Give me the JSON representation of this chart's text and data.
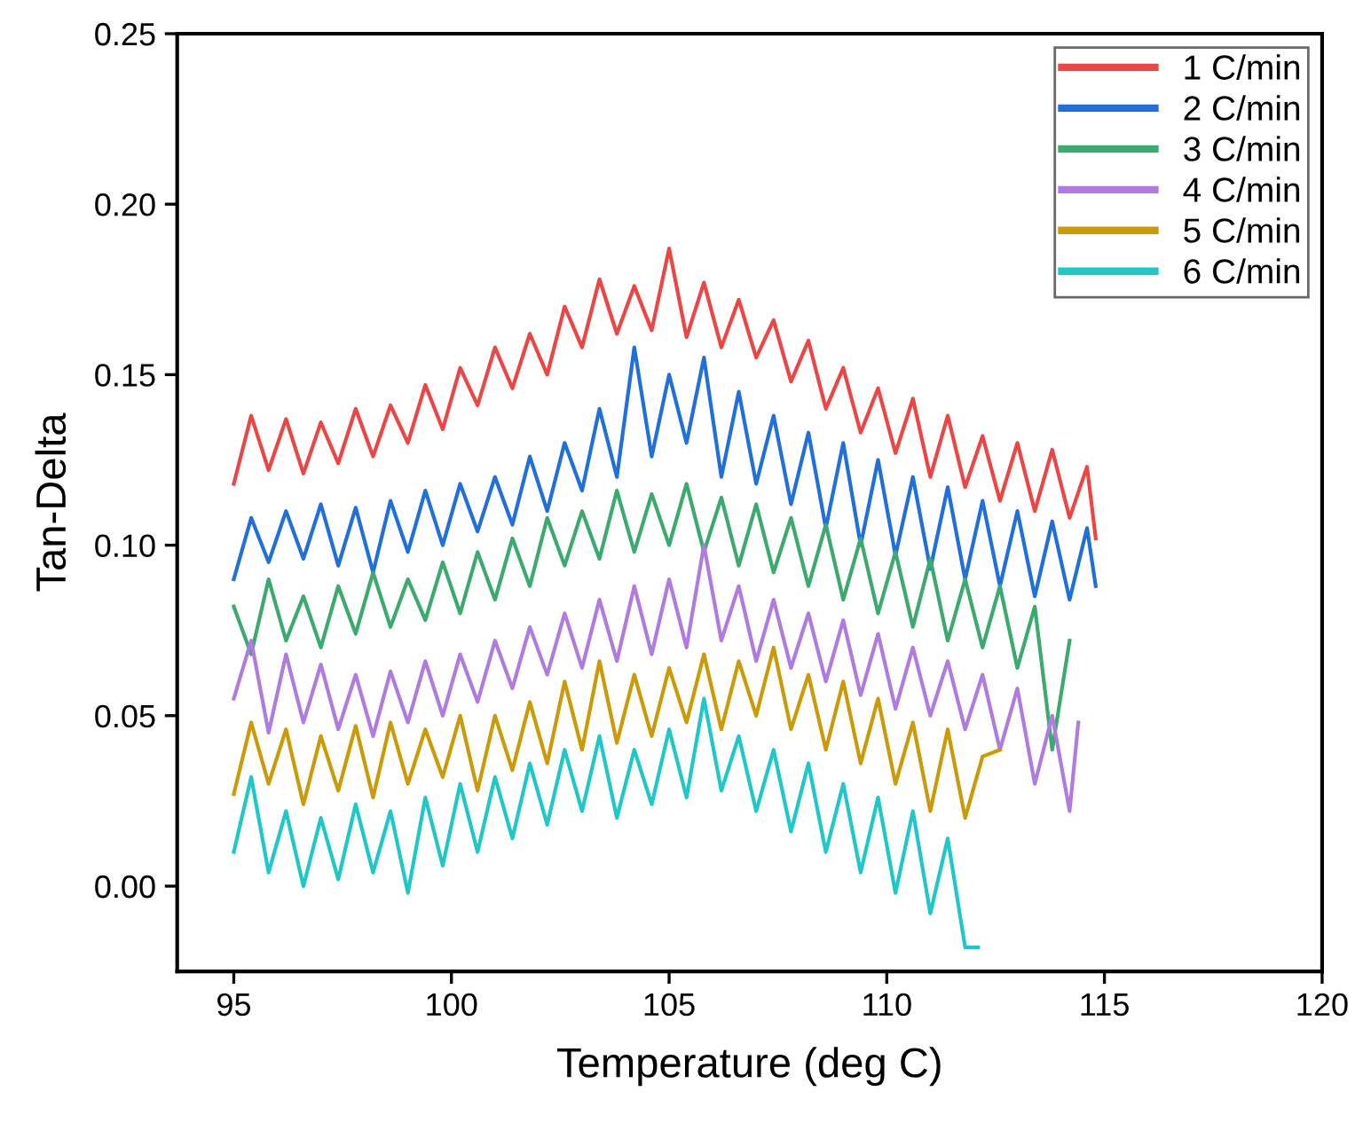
{
  "chart_data": {
    "type": "line",
    "xlabel": "Temperature (deg C)",
    "ylabel": "Tan-Delta",
    "xlim": [
      93.7,
      120
    ],
    "xticks": [
      95,
      100,
      105,
      110,
      115,
      120
    ],
    "ylim": [
      -0.025,
      0.25
    ],
    "yticks": [
      {
        "value": 0,
        "label": "0.00"
      },
      {
        "value": 0.05,
        "label": "0.05"
      },
      {
        "value": 0.1,
        "label": "0.10"
      },
      {
        "value": 0.15,
        "label": "0.15"
      },
      {
        "value": 0.2,
        "label": "0.20"
      },
      {
        "value": 0.25,
        "label": "0.25"
      }
    ],
    "grid": false,
    "legend": "top right",
    "marker": "none",
    "line_style": "solid",
    "series": [
      {
        "name": "1 C/min",
        "color": "#ee4444",
        "x": [
          95,
          95.4,
          95.8,
          96.2,
          96.6,
          97,
          97.4,
          97.8,
          98.2,
          98.6,
          99,
          99.4,
          99.8,
          100.2,
          100.6,
          101,
          101.4,
          101.8,
          102.2,
          102.6,
          103,
          103.4,
          103.8,
          104.2,
          104.6,
          105,
          105.4,
          105.8,
          106.2,
          106.6,
          107,
          107.4,
          107.8,
          108.2,
          108.6,
          109,
          109.4,
          109.8,
          110.2,
          110.6,
          111,
          111.4,
          111.8,
          112.2,
          112.6,
          113,
          113.4,
          113.8,
          114.2,
          114.6,
          114.8
        ],
        "values": [
          0.118,
          0.138,
          0.122,
          0.137,
          0.121,
          0.136,
          0.124,
          0.14,
          0.126,
          0.141,
          0.13,
          0.147,
          0.134,
          0.152,
          0.141,
          0.158,
          0.146,
          0.162,
          0.15,
          0.17,
          0.158,
          0.178,
          0.162,
          0.176,
          0.163,
          0.187,
          0.161,
          0.177,
          0.158,
          0.172,
          0.155,
          0.166,
          0.148,
          0.16,
          0.14,
          0.152,
          0.133,
          0.146,
          0.127,
          0.143,
          0.12,
          0.138,
          0.117,
          0.132,
          0.113,
          0.13,
          0.11,
          0.128,
          0.108,
          0.123,
          0.102
        ]
      },
      {
        "name": "2 C/min",
        "color": "#1f6fdc",
        "x": [
          95,
          95.4,
          95.8,
          96.2,
          96.6,
          97,
          97.4,
          97.8,
          98.2,
          98.6,
          99,
          99.4,
          99.8,
          100.2,
          100.6,
          101,
          101.4,
          101.8,
          102.2,
          102.6,
          103,
          103.4,
          103.8,
          104.2,
          104.6,
          105,
          105.4,
          105.8,
          106.2,
          106.6,
          107,
          107.4,
          107.8,
          108.2,
          108.6,
          109,
          109.4,
          109.8,
          110.2,
          110.6,
          111,
          111.4,
          111.8,
          112.2,
          112.6,
          113,
          113.4,
          113.8,
          114.2,
          114.6,
          114.8
        ],
        "values": [
          0.09,
          0.108,
          0.095,
          0.11,
          0.096,
          0.112,
          0.094,
          0.111,
          0.092,
          0.113,
          0.098,
          0.116,
          0.1,
          0.118,
          0.104,
          0.12,
          0.106,
          0.126,
          0.11,
          0.13,
          0.116,
          0.14,
          0.12,
          0.158,
          0.126,
          0.15,
          0.13,
          0.155,
          0.12,
          0.145,
          0.118,
          0.138,
          0.112,
          0.133,
          0.105,
          0.13,
          0.1,
          0.125,
          0.097,
          0.12,
          0.093,
          0.117,
          0.09,
          0.113,
          0.088,
          0.11,
          0.085,
          0.107,
          0.084,
          0.105,
          0.088
        ]
      },
      {
        "name": "3 C/min",
        "color": "#3aaa6e",
        "x": [
          95,
          95.4,
          95.8,
          96.2,
          96.6,
          97,
          97.4,
          97.8,
          98.2,
          98.6,
          99,
          99.4,
          99.8,
          100.2,
          100.6,
          101,
          101.4,
          101.8,
          102.2,
          102.6,
          103,
          103.4,
          103.8,
          104.2,
          104.6,
          105,
          105.4,
          105.8,
          106.2,
          106.6,
          107,
          107.4,
          107.8,
          108.2,
          108.6,
          109,
          109.4,
          109.8,
          110.2,
          110.6,
          111,
          111.4,
          111.8,
          112.2,
          112.6,
          113,
          113.4,
          113.8,
          114.2
        ],
        "values": [
          0.082,
          0.068,
          0.09,
          0.072,
          0.085,
          0.07,
          0.088,
          0.074,
          0.092,
          0.076,
          0.09,
          0.078,
          0.095,
          0.08,
          0.098,
          0.084,
          0.102,
          0.088,
          0.108,
          0.094,
          0.11,
          0.096,
          0.116,
          0.098,
          0.115,
          0.1,
          0.118,
          0.098,
          0.114,
          0.094,
          0.112,
          0.092,
          0.108,
          0.088,
          0.106,
          0.084,
          0.102,
          0.08,
          0.098,
          0.076,
          0.096,
          0.072,
          0.09,
          0.07,
          0.088,
          0.064,
          0.082,
          0.04,
          0.072
        ]
      },
      {
        "name": "4 C/min",
        "color": "#b07be0",
        "x": [
          95,
          95.4,
          95.8,
          96.2,
          96.6,
          97,
          97.4,
          97.8,
          98.2,
          98.6,
          99,
          99.4,
          99.8,
          100.2,
          100.6,
          101,
          101.4,
          101.8,
          102.2,
          102.6,
          103,
          103.4,
          103.8,
          104.2,
          104.6,
          105,
          105.4,
          105.8,
          106.2,
          106.6,
          107,
          107.4,
          107.8,
          108.2,
          108.6,
          109,
          109.4,
          109.8,
          110.2,
          110.6,
          111,
          111.4,
          111.8,
          112.2,
          112.6,
          113,
          113.4,
          113.8,
          114.2,
          114.4
        ],
        "values": [
          0.055,
          0.072,
          0.045,
          0.068,
          0.048,
          0.065,
          0.046,
          0.062,
          0.044,
          0.063,
          0.048,
          0.066,
          0.05,
          0.068,
          0.054,
          0.072,
          0.058,
          0.076,
          0.062,
          0.08,
          0.064,
          0.084,
          0.066,
          0.088,
          0.068,
          0.09,
          0.07,
          0.1,
          0.072,
          0.088,
          0.066,
          0.084,
          0.064,
          0.08,
          0.06,
          0.078,
          0.056,
          0.074,
          0.052,
          0.07,
          0.05,
          0.066,
          0.046,
          0.062,
          0.04,
          0.058,
          0.03,
          0.05,
          0.022,
          0.048
        ]
      },
      {
        "name": "5 C/min",
        "color": "#cc9a06",
        "x": [
          95,
          95.4,
          95.8,
          96.2,
          96.6,
          97,
          97.4,
          97.8,
          98.2,
          98.6,
          99,
          99.4,
          99.8,
          100.2,
          100.6,
          101,
          101.4,
          101.8,
          102.2,
          102.6,
          103,
          103.4,
          103.8,
          104.2,
          104.6,
          105,
          105.4,
          105.8,
          106.2,
          106.6,
          107,
          107.4,
          107.8,
          108.2,
          108.6,
          109,
          109.4,
          109.8,
          110.2,
          110.6,
          111,
          111.4,
          111.8,
          112.2,
          112.6
        ],
        "values": [
          0.027,
          0.048,
          0.03,
          0.046,
          0.024,
          0.044,
          0.028,
          0.047,
          0.026,
          0.048,
          0.03,
          0.046,
          0.032,
          0.05,
          0.028,
          0.05,
          0.034,
          0.054,
          0.036,
          0.06,
          0.04,
          0.066,
          0.042,
          0.062,
          0.044,
          0.064,
          0.048,
          0.068,
          0.046,
          0.066,
          0.05,
          0.07,
          0.046,
          0.062,
          0.04,
          0.06,
          0.036,
          0.055,
          0.03,
          0.048,
          0.022,
          0.046,
          0.02,
          0.038,
          0.04
        ]
      },
      {
        "name": "6 C/min",
        "color": "#1ec8c8",
        "x": [
          95,
          95.4,
          95.8,
          96.2,
          96.6,
          97,
          97.4,
          97.8,
          98.2,
          98.6,
          99,
          99.4,
          99.8,
          100.2,
          100.6,
          101,
          101.4,
          101.8,
          102.2,
          102.6,
          103,
          103.4,
          103.8,
          104.2,
          104.6,
          105,
          105.4,
          105.8,
          106.2,
          106.6,
          107,
          107.4,
          107.8,
          108.2,
          108.6,
          109,
          109.4,
          109.8,
          110.2,
          110.6,
          111,
          111.4,
          111.8,
          112.1
        ],
        "values": [
          0.01,
          0.032,
          0.004,
          0.022,
          0.0,
          0.02,
          0.002,
          0.024,
          0.004,
          0.022,
          -0.002,
          0.026,
          0.006,
          0.03,
          0.01,
          0.032,
          0.014,
          0.036,
          0.018,
          0.04,
          0.022,
          0.044,
          0.02,
          0.04,
          0.024,
          0.046,
          0.026,
          0.055,
          0.028,
          0.044,
          0.022,
          0.04,
          0.016,
          0.036,
          0.01,
          0.03,
          0.004,
          0.026,
          -0.002,
          0.022,
          -0.008,
          0.014,
          -0.018,
          -0.018
        ]
      }
    ]
  }
}
